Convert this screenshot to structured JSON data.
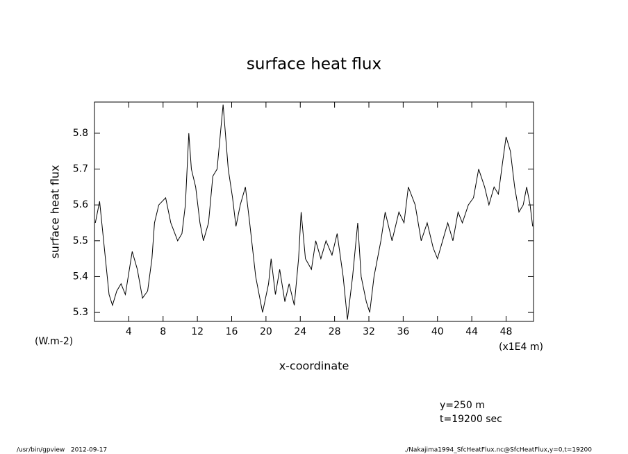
{
  "chart_data": {
    "type": "line",
    "title": "surface heat flux",
    "y_label": "surface heat flux",
    "x_label": "x-coordinate",
    "y_units": "(W.m-2)",
    "x_units": "(x1E4 m)",
    "annotations": [
      "y=250 m",
      "t=19200 sec"
    ],
    "footer_left": "/usr/bin/gpview   2012-09-17",
    "footer_right": "./Nakajima1994_SfcHeatFlux.nc@SfcHeatFlux,y=0,t=19200",
    "xlim": [
      0,
      51.2
    ],
    "ylim": [
      5.275,
      5.887
    ],
    "xticks": [
      4,
      8,
      12,
      16,
      20,
      24,
      28,
      32,
      36,
      40,
      44,
      48
    ],
    "yticks": [
      5.3,
      5.4,
      5.5,
      5.6,
      5.7,
      5.8
    ],
    "x": [
      0.1,
      0.6,
      1.7,
      2.1,
      2.6,
      3.1,
      3.6,
      4.4,
      5,
      5.6,
      6.2,
      6.7,
      7,
      7.5,
      8.3,
      8.9,
      9.7,
      10.2,
      10.6,
      11,
      11.3,
      11.8,
      12.3,
      12.7,
      13.3,
      13.8,
      14.3,
      15,
      15.6,
      16.1,
      16.5,
      17,
      17.6,
      18.1,
      18.8,
      19.6,
      20.3,
      20.6,
      21.1,
      21.6,
      22.2,
      22.7,
      23.3,
      23.8,
      24.1,
      24.6,
      25.3,
      25.8,
      26.4,
      27,
      27.7,
      28.3,
      29,
      29.5,
      30.1,
      30.7,
      31.1,
      31.7,
      32.1,
      32.6,
      33,
      33.4,
      33.9,
      34.7,
      35.5,
      36.1,
      36.6,
      37.4,
      38.1,
      38.8,
      39.5,
      40,
      40.6,
      41.2,
      41.8,
      42.4,
      42.9,
      43.6,
      44.2,
      44.8,
      45.5,
      46,
      46.6,
      47.1,
      47.6,
      48,
      48.5,
      49,
      49.5,
      50,
      50.4,
      50.8,
      51.1
    ],
    "series": [
      {
        "name": "SfcHeatFlux",
        "color": "#000000",
        "values": [
          5.55,
          5.61,
          5.35,
          5.32,
          5.36,
          5.38,
          5.35,
          5.47,
          5.42,
          5.34,
          5.36,
          5.45,
          5.55,
          5.6,
          5.62,
          5.55,
          5.5,
          5.52,
          5.6,
          5.8,
          5.7,
          5.65,
          5.55,
          5.5,
          5.55,
          5.68,
          5.7,
          5.88,
          5.7,
          5.62,
          5.54,
          5.6,
          5.65,
          5.55,
          5.4,
          5.3,
          5.38,
          5.45,
          5.35,
          5.42,
          5.33,
          5.38,
          5.32,
          5.45,
          5.58,
          5.45,
          5.42,
          5.5,
          5.45,
          5.5,
          5.46,
          5.52,
          5.4,
          5.28,
          5.4,
          5.55,
          5.4,
          5.33,
          5.3,
          5.4,
          5.45,
          5.5,
          5.58,
          5.5,
          5.58,
          5.55,
          5.65,
          5.6,
          5.5,
          5.55,
          5.48,
          5.45,
          5.5,
          5.55,
          5.5,
          5.58,
          5.55,
          5.6,
          5.62,
          5.7,
          5.65,
          5.6,
          5.65,
          5.63,
          5.72,
          5.79,
          5.75,
          5.65,
          5.58,
          5.6,
          5.65,
          5.6,
          5.54
        ]
      }
    ]
  }
}
